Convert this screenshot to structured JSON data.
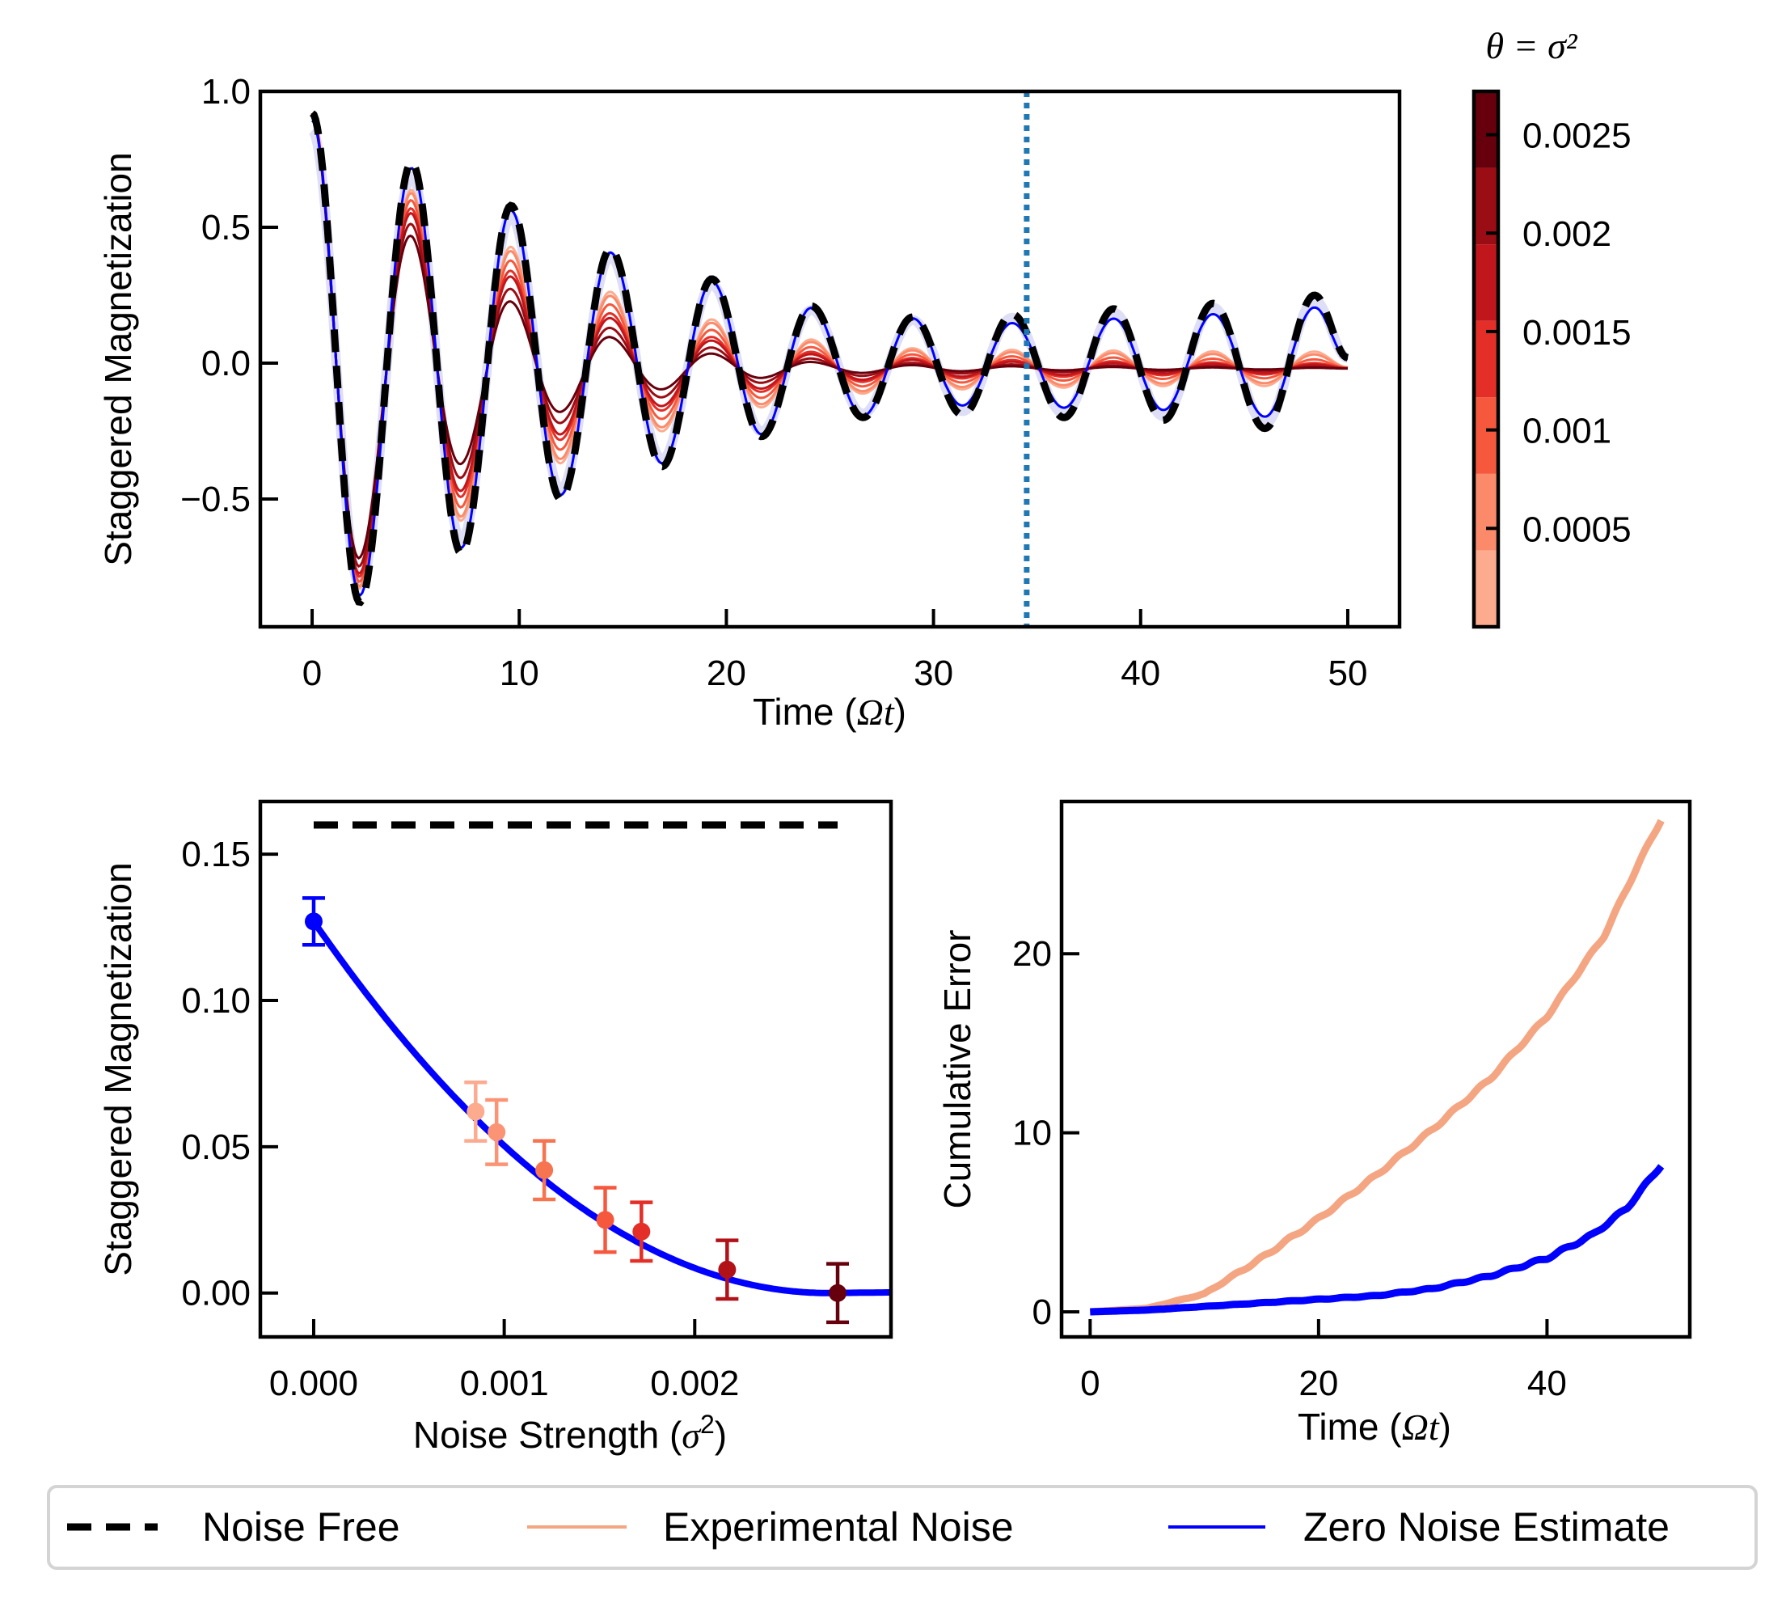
{
  "figure": {
    "legend": {
      "placement": "bottom",
      "entries": [
        {
          "label": "Noise Free",
          "style": "dashed",
          "color": "#000000"
        },
        {
          "label": "Experimental Noise",
          "style": "solid",
          "color": "#f4a582"
        },
        {
          "label": "Zero Noise Estimate",
          "style": "solid",
          "color": "#0000ff"
        }
      ]
    }
  },
  "chart_data": [
    {
      "id": "top",
      "type": "line",
      "xlabel_text": "Time (",
      "xlabel_math": "Ωt",
      "xlabel_close": ")",
      "ylabel": "Staggered Magnetization",
      "xlim": [
        -2.5,
        52.5
      ],
      "ylim": [
        -0.97,
        1.0
      ],
      "xticks": [
        "0",
        "10",
        "20",
        "30",
        "40",
        "50"
      ],
      "xtick_values": [
        0,
        10,
        20,
        30,
        40,
        50
      ],
      "yticks": [
        "1.0",
        "0.5",
        "0.0",
        "−0.5"
      ],
      "ytick_values": [
        1.0,
        0.5,
        0.0,
        -0.5
      ],
      "model": {
        "description": "approximately cos-like decaying oscillation",
        "period": 4.8,
        "initial_value": 0.92,
        "noise_free_peaks": [
          {
            "t": 0.0,
            "y": 0.92
          },
          {
            "t": 2.3,
            "y": -0.88
          },
          {
            "t": 4.8,
            "y": 0.74
          },
          {
            "t": 7.2,
            "y": -0.7
          },
          {
            "t": 9.6,
            "y": 0.58
          },
          {
            "t": 12.0,
            "y": -0.5
          },
          {
            "t": 14.4,
            "y": 0.42
          },
          {
            "t": 16.9,
            "y": -0.38
          },
          {
            "t": 19.3,
            "y": 0.31
          },
          {
            "t": 21.7,
            "y": -0.27
          },
          {
            "t": 24.1,
            "y": 0.21
          },
          {
            "t": 26.6,
            "y": -0.2
          },
          {
            "t": 29.0,
            "y": 0.17
          },
          {
            "t": 31.4,
            "y": -0.19
          },
          {
            "t": 33.8,
            "y": 0.18
          },
          {
            "t": 36.3,
            "y": -0.2
          },
          {
            "t": 38.7,
            "y": 0.2
          },
          {
            "t": 41.1,
            "y": -0.21
          },
          {
            "t": 43.5,
            "y": 0.22
          },
          {
            "t": 46.0,
            "y": -0.24
          },
          {
            "t": 48.4,
            "y": 0.25
          },
          {
            "t": 50.0,
            "y": 0.02
          }
        ],
        "noisy_decay_by_theta": [
          0.00084,
          0.00095,
          0.00121,
          0.00152,
          0.00171,
          0.00216,
          0.0027
        ]
      },
      "vline": {
        "x": 34.5,
        "style": "dotted",
        "color": "#1f77b4"
      },
      "colorbar": {
        "title_math": "θ = σ²",
        "ticks": [
          "0.0025",
          "0.002",
          "0.0015",
          "0.001",
          "0.0005"
        ],
        "tick_values": [
          0.0025,
          0.002,
          0.0015,
          0.001,
          0.0005
        ],
        "range": [
          0.0,
          0.00272
        ],
        "colors": [
          "#fcab8f",
          "#fb8a6b",
          "#f6583e",
          "#e32f27",
          "#c1161b",
          "#9b0d14",
          "#67000d"
        ]
      }
    },
    {
      "id": "bottom-left",
      "type": "scatter",
      "xlabel_text": "Noise Strength (",
      "xlabel_math": "σ",
      "xlabel_sup": "2",
      "xlabel_close": ")",
      "ylabel": "Staggered Magnetization",
      "xlim": [
        -0.00028,
        0.00303
      ],
      "ylim": [
        -0.015,
        0.168
      ],
      "xticks": [
        "0.000",
        "0.001",
        "0.002"
      ],
      "xtick_values": [
        0.0,
        0.001,
        0.002
      ],
      "yticks": [
        "0.15",
        "0.10",
        "0.05",
        "0.00"
      ],
      "ytick_values": [
        0.15,
        0.1,
        0.05,
        0.0
      ],
      "noise_free_level": 0.16,
      "noise_free_x_range": [
        0.0,
        0.00275
      ],
      "points": [
        {
          "x": 0.0,
          "y": 0.127,
          "err": 0.008,
          "color": "#0000ff"
        },
        {
          "x": 0.00085,
          "y": 0.062,
          "err": 0.01,
          "color": "#fcab8f"
        },
        {
          "x": 0.00096,
          "y": 0.055,
          "err": 0.011,
          "color": "#fb9474"
        },
        {
          "x": 0.00121,
          "y": 0.042,
          "err": 0.01,
          "color": "#f6744f"
        },
        {
          "x": 0.00153,
          "y": 0.025,
          "err": 0.011,
          "color": "#f6583e"
        },
        {
          "x": 0.00172,
          "y": 0.021,
          "err": 0.01,
          "color": "#e32f27"
        },
        {
          "x": 0.00217,
          "y": 0.008,
          "err": 0.01,
          "color": "#b11218"
        },
        {
          "x": 0.00275,
          "y": 0.0,
          "err": 0.01,
          "color": "#67000d"
        }
      ],
      "fit": {
        "type": "quadratic",
        "vertex_x": 0.0027,
        "vertex_y": 0.0,
        "y_at_zero": 0.127
      }
    },
    {
      "id": "bottom-right",
      "type": "line",
      "xlabel_text": "Time (",
      "xlabel_math": "Ωt",
      "xlabel_close": ")",
      "ylabel": "Cumulative Error",
      "xlim": [
        -2.5,
        52.5
      ],
      "ylim": [
        -1.4,
        28.5
      ],
      "xticks": [
        "0",
        "20",
        "40"
      ],
      "xtick_values": [
        0,
        20,
        40
      ],
      "yticks": [
        "20",
        "10",
        "0"
      ],
      "ytick_values": [
        20,
        10,
        0
      ],
      "series": [
        {
          "name": "Experimental Noise",
          "color": "#f4a582",
          "x": [
            0,
            5,
            10,
            15,
            20,
            25,
            30,
            35,
            40,
            45,
            48,
            50
          ],
          "y": [
            0,
            0.2,
            1.0,
            3.0,
            5.2,
            7.6,
            10.2,
            13.0,
            16.5,
            21.0,
            25.0,
            27.5
          ]
        },
        {
          "name": "Zero Noise Estimate",
          "color": "#0000ff",
          "x": [
            0,
            5,
            10,
            15,
            20,
            25,
            30,
            35,
            40,
            44,
            47,
            50
          ],
          "y": [
            0,
            0.1,
            0.3,
            0.5,
            0.7,
            0.9,
            1.3,
            2.0,
            3.0,
            4.3,
            5.8,
            8.2
          ]
        }
      ]
    }
  ]
}
